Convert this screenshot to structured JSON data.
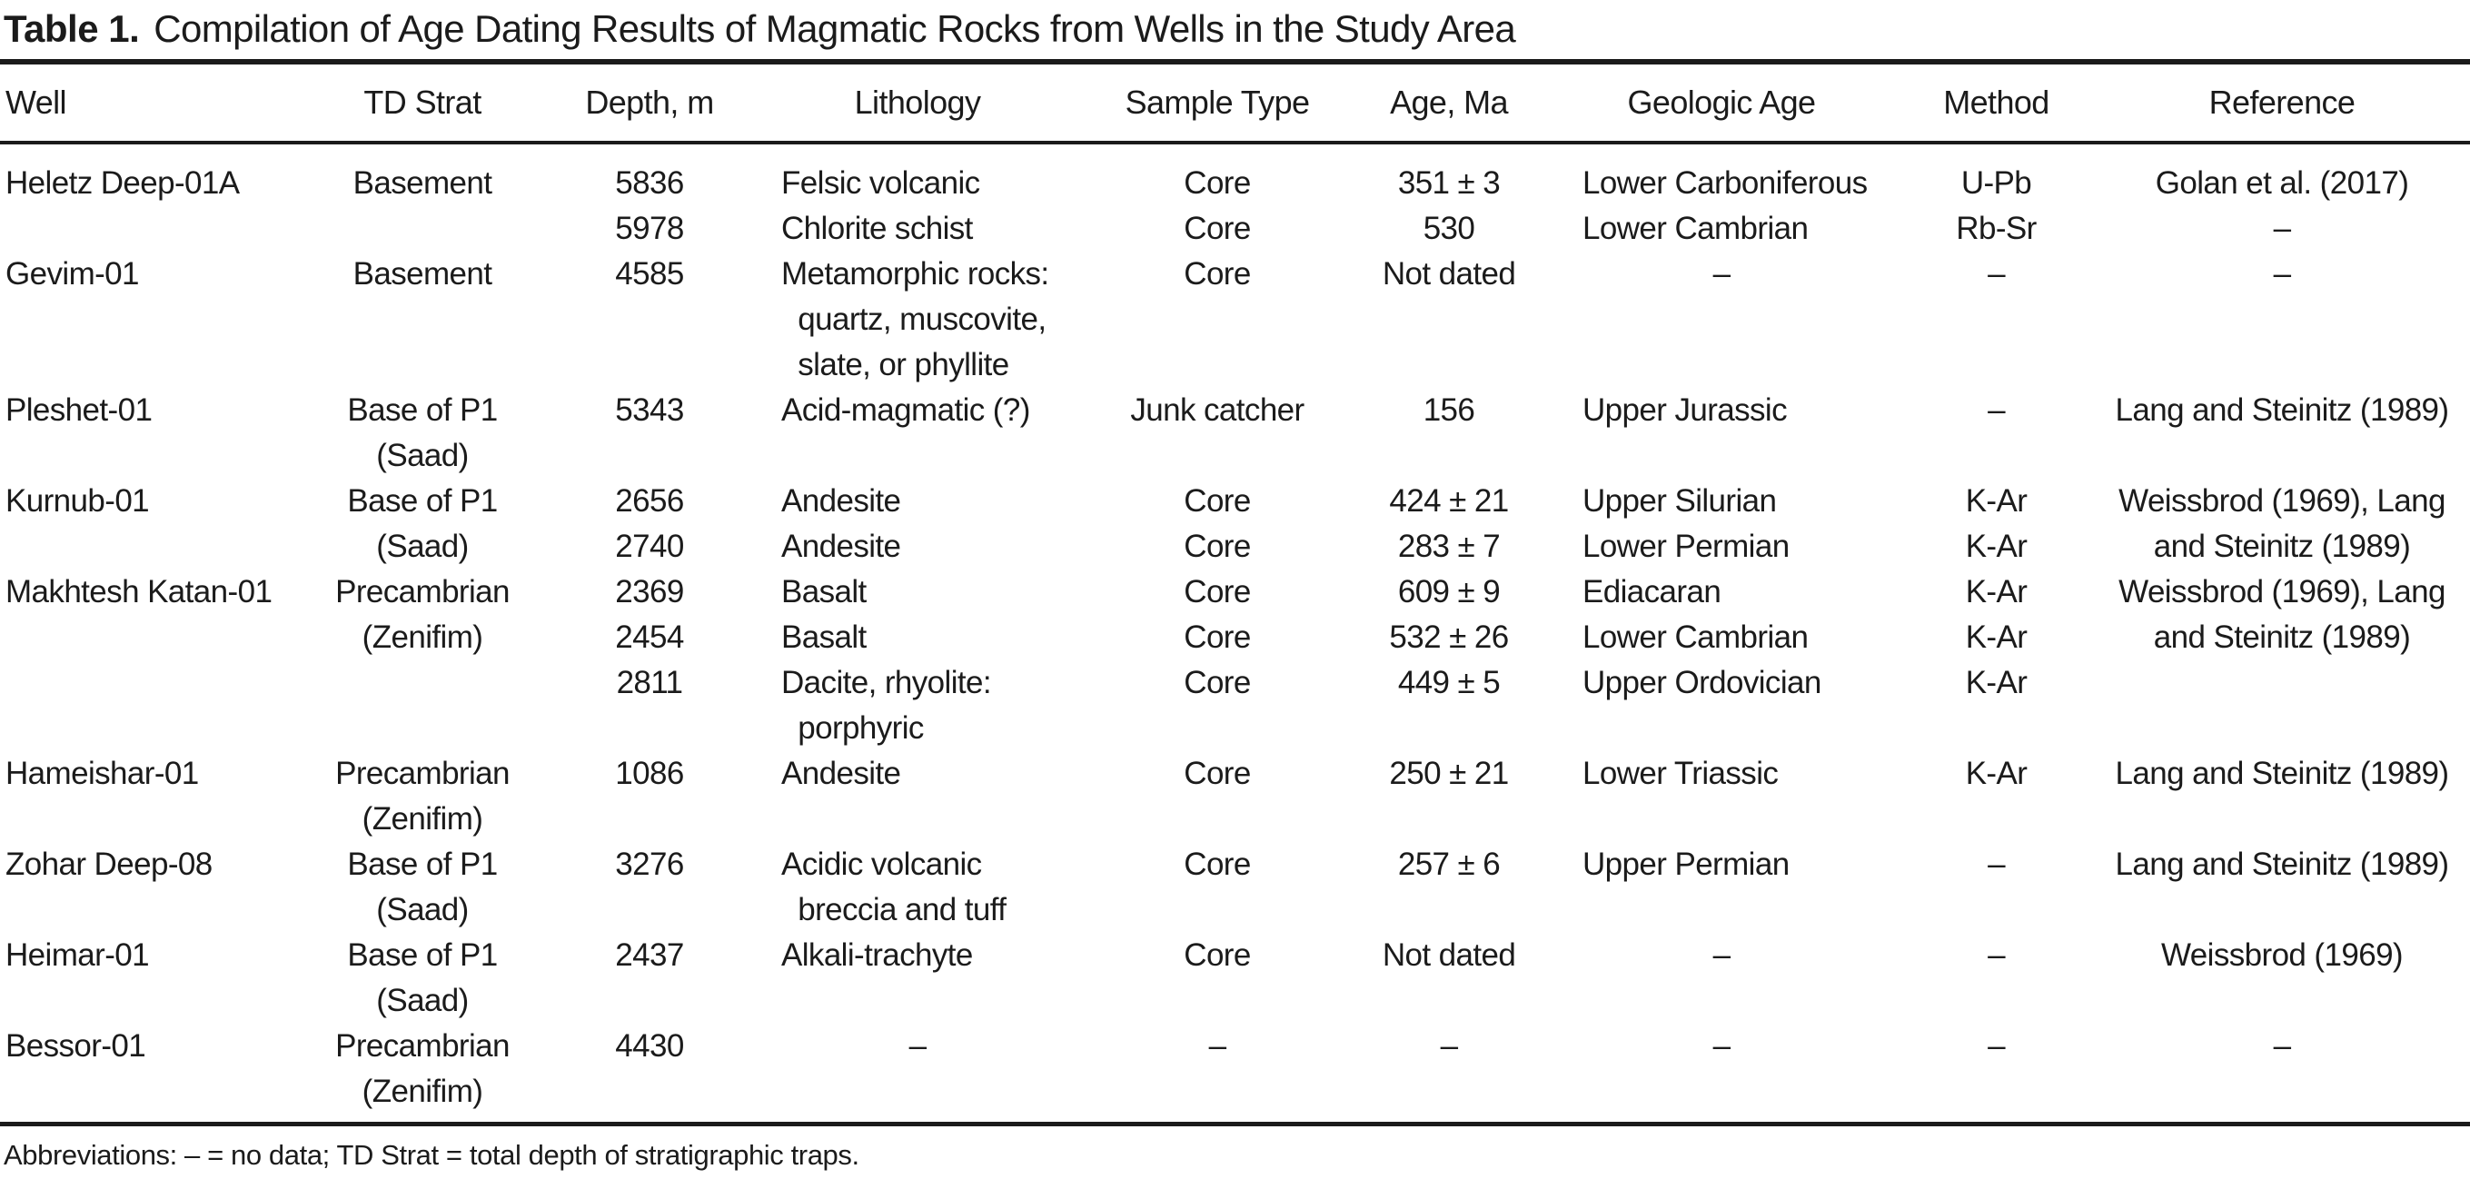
{
  "title": {
    "label": "Table 1.",
    "caption": "Compilation of Age Dating Results of Magmatic Rocks from Wells in the Study Area"
  },
  "table": {
    "columns": [
      {
        "key": "well",
        "label": "Well"
      },
      {
        "key": "td_strat",
        "label": "TD Strat"
      },
      {
        "key": "depth",
        "label": "Depth, m"
      },
      {
        "key": "lithology",
        "label": "Lithology"
      },
      {
        "key": "sample_type",
        "label": "Sample Type"
      },
      {
        "key": "age_ma",
        "label": "Age, Ma"
      },
      {
        "key": "geologic_age",
        "label": "Geologic Age"
      },
      {
        "key": "method",
        "label": "Method"
      },
      {
        "key": "reference",
        "label": "Reference"
      }
    ],
    "rows": [
      {
        "well": [
          "Heletz Deep-01A"
        ],
        "td_strat": [
          "Basement"
        ],
        "depth": [
          "5836",
          "5978"
        ],
        "lithology": [
          "Felsic volcanic",
          "Chlorite schist"
        ],
        "sample_type": [
          "Core",
          "Core"
        ],
        "age_ma": [
          "351 ± 3",
          "530"
        ],
        "geologic_age": [
          "Lower Carboniferous",
          "Lower Cambrian"
        ],
        "method": [
          "U-Pb",
          "Rb-Sr"
        ],
        "reference": [
          "Golan et al. (2017)",
          "–"
        ]
      },
      {
        "well": [
          "Gevim-01"
        ],
        "td_strat": [
          "Basement"
        ],
        "depth": [
          "4585"
        ],
        "lithology": [
          "Metamorphic rocks:",
          "  quartz, muscovite,",
          "  slate, or phyllite"
        ],
        "sample_type": [
          "Core"
        ],
        "age_ma": [
          "Not dated"
        ],
        "geologic_age": [
          "–"
        ],
        "method": [
          "–"
        ],
        "reference": [
          "–"
        ]
      },
      {
        "well": [
          "Pleshet-01"
        ],
        "td_strat": [
          "Base of P1",
          "(Saad)"
        ],
        "depth": [
          "5343"
        ],
        "lithology": [
          "Acid-magmatic (?)"
        ],
        "sample_type": [
          "Junk catcher"
        ],
        "age_ma": [
          "156"
        ],
        "geologic_age": [
          "Upper Jurassic"
        ],
        "method": [
          "–"
        ],
        "reference": [
          "Lang and Steinitz (1989)"
        ]
      },
      {
        "well": [
          "Kurnub-01"
        ],
        "td_strat": [
          "Base of P1",
          "(Saad)"
        ],
        "depth": [
          "2656",
          "2740"
        ],
        "lithology": [
          "Andesite",
          "Andesite"
        ],
        "sample_type": [
          "Core",
          "Core"
        ],
        "age_ma": [
          "424 ± 21",
          "283 ± 7"
        ],
        "geologic_age": [
          "Upper Silurian",
          "Lower Permian"
        ],
        "method": [
          "K-Ar",
          "K-Ar"
        ],
        "reference": [
          "Weissbrod (1969), Lang",
          "  and Steinitz (1989)"
        ]
      },
      {
        "well": [
          "Makhtesh Katan-01"
        ],
        "td_strat": [
          "Precambrian",
          "(Zenifim)"
        ],
        "depth": [
          "2369",
          "2454",
          "2811"
        ],
        "lithology": [
          "Basalt",
          "Basalt",
          "Dacite, rhyolite:",
          "  porphyric"
        ],
        "sample_type": [
          "Core",
          "Core",
          "Core"
        ],
        "age_ma": [
          "609 ± 9",
          "532 ± 26",
          "449 ± 5"
        ],
        "geologic_age": [
          "Ediacaran",
          "Lower Cambrian",
          "Upper Ordovician"
        ],
        "method": [
          "K-Ar",
          "K-Ar",
          "K-Ar"
        ],
        "reference": [
          "Weissbrod (1969), Lang",
          "  and Steinitz (1989)"
        ]
      },
      {
        "well": [
          "Hameishar-01"
        ],
        "td_strat": [
          "Precambrian",
          "(Zenifim)"
        ],
        "depth": [
          "1086"
        ],
        "lithology": [
          "Andesite"
        ],
        "sample_type": [
          "Core"
        ],
        "age_ma": [
          "250 ± 21"
        ],
        "geologic_age": [
          "Lower Triassic"
        ],
        "method": [
          "K-Ar"
        ],
        "reference": [
          "Lang and Steinitz (1989)"
        ]
      },
      {
        "well": [
          "Zohar Deep-08"
        ],
        "td_strat": [
          "Base of P1",
          "(Saad)"
        ],
        "depth": [
          "3276"
        ],
        "lithology": [
          "Acidic volcanic",
          "  breccia and tuff"
        ],
        "sample_type": [
          "Core"
        ],
        "age_ma": [
          "257 ± 6"
        ],
        "geologic_age": [
          "Upper Permian"
        ],
        "method": [
          "–"
        ],
        "reference": [
          "Lang and Steinitz (1989)"
        ]
      },
      {
        "well": [
          "Heimar-01"
        ],
        "td_strat": [
          "Base of P1",
          "(Saad)"
        ],
        "depth": [
          "2437"
        ],
        "lithology": [
          "Alkali-trachyte"
        ],
        "sample_type": [
          "Core"
        ],
        "age_ma": [
          "Not dated"
        ],
        "geologic_age": [
          "–"
        ],
        "method": [
          "–"
        ],
        "reference": [
          "Weissbrod (1969)"
        ]
      },
      {
        "well": [
          "Bessor-01"
        ],
        "td_strat": [
          "Precambrian",
          "(Zenifim)"
        ],
        "depth": [
          "4430"
        ],
        "lithology": [
          "–"
        ],
        "sample_type": [
          "–"
        ],
        "age_ma": [
          "–"
        ],
        "geologic_age": [
          "–"
        ],
        "method": [
          "–"
        ],
        "reference": [
          "–"
        ]
      }
    ]
  },
  "footnote": "Abbreviations: – = no data; TD Strat = total depth of stratigraphic traps.",
  "colors": {
    "text": "#1b1b1b",
    "rule": "#1b1b1b",
    "background": "#ffffff"
  }
}
